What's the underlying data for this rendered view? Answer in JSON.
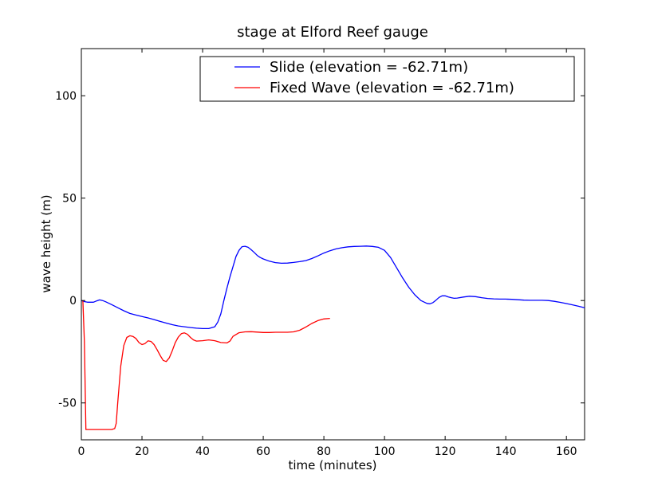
{
  "chart_data": {
    "type": "line",
    "title": "stage at Elford Reef gauge",
    "xlabel": "time (minutes)",
    "ylabel": "wave height (m)",
    "xlim": [
      0,
      166
    ],
    "ylim": [
      -68,
      123
    ],
    "xticks": [
      0,
      20,
      40,
      60,
      80,
      100,
      120,
      140,
      160
    ],
    "yticks": [
      -50,
      0,
      50,
      100
    ],
    "grid": false,
    "legend_position": "top-right",
    "series": [
      {
        "name": "Slide (elevation = -62.71m)",
        "color": "#0000ff",
        "x": [
          0,
          1,
          2,
          3,
          4,
          5,
          6,
          7,
          8,
          10,
          12,
          14,
          16,
          18,
          20,
          22,
          24,
          26,
          28,
          30,
          32,
          34,
          36,
          38,
          40,
          42,
          44,
          45,
          46,
          47,
          48,
          49,
          50,
          51,
          52,
          53,
          54,
          55,
          56,
          57,
          58,
          59,
          60,
          62,
          64,
          66,
          68,
          70,
          72,
          74,
          76,
          78,
          80,
          82,
          84,
          86,
          88,
          90,
          92,
          94,
          96,
          98,
          100,
          102,
          104,
          106,
          108,
          110,
          112,
          114,
          115,
          116,
          117,
          118,
          119,
          120,
          121,
          122,
          123,
          124,
          126,
          128,
          130,
          132,
          134,
          136,
          138,
          140,
          142,
          144,
          146,
          148,
          150,
          152,
          154,
          156,
          158,
          160,
          162,
          164,
          166
        ],
        "y": [
          0,
          -0.5,
          -0.8,
          -0.8,
          -0.8,
          -0.2,
          0.3,
          0.0,
          -0.6,
          -2.0,
          -3.5,
          -5.0,
          -6.3,
          -7.1,
          -7.8,
          -8.5,
          -9.3,
          -10.2,
          -11.0,
          -11.8,
          -12.4,
          -12.8,
          -13.2,
          -13.5,
          -13.7,
          -13.7,
          -12.8,
          -10.5,
          -6.5,
          0.0,
          6.0,
          11.5,
          16.5,
          21.5,
          24.5,
          26.3,
          26.5,
          26.0,
          24.8,
          23.5,
          22.0,
          21.0,
          20.3,
          19.2,
          18.5,
          18.2,
          18.3,
          18.6,
          19.0,
          19.5,
          20.5,
          21.8,
          23.2,
          24.3,
          25.2,
          25.8,
          26.2,
          26.4,
          26.5,
          26.6,
          26.4,
          26.0,
          24.5,
          21.0,
          16.0,
          11.0,
          6.5,
          2.8,
          0.0,
          -1.4,
          -1.6,
          -1.0,
          0.2,
          1.5,
          2.3,
          2.3,
          1.8,
          1.4,
          1.1,
          1.2,
          1.7,
          2.1,
          1.9,
          1.4,
          1.0,
          0.8,
          0.7,
          0.7,
          0.6,
          0.4,
          0.2,
          0.1,
          0.1,
          0.1,
          0.0,
          -0.4,
          -0.9,
          -1.5,
          -2.1,
          -2.8,
          -3.5
        ]
      },
      {
        "name": "Fixed Wave (elevation = -62.71m)",
        "color": "#ff0000",
        "x": [
          0.5,
          1.0,
          1.5,
          5,
          8,
          10,
          11,
          11.5,
          12,
          13,
          14,
          15,
          16,
          17,
          18,
          19,
          20,
          21,
          22,
          23,
          24,
          25,
          26,
          27,
          28,
          29,
          30,
          31,
          32,
          33,
          34,
          35,
          36,
          37,
          38,
          40,
          42,
          44,
          46,
          48,
          49,
          50,
          52,
          54,
          56,
          58,
          60,
          62,
          64,
          66,
          68,
          70,
          72,
          74,
          76,
          78,
          80,
          82
        ],
        "y": [
          0,
          -20,
          -63,
          -63,
          -63,
          -63,
          -62.5,
          -60,
          -50,
          -32,
          -22,
          -18,
          -17.2,
          -17.5,
          -18.5,
          -20.5,
          -21.5,
          -21,
          -19.7,
          -20,
          -21.5,
          -24,
          -26.8,
          -29.2,
          -29.8,
          -28,
          -24.5,
          -20.5,
          -17.8,
          -16.2,
          -15.8,
          -16.5,
          -18,
          -19.2,
          -19.8,
          -19.6,
          -19.2,
          -19.6,
          -20.5,
          -20.7,
          -19.8,
          -17.5,
          -15.7,
          -15.3,
          -15.2,
          -15.4,
          -15.6,
          -15.6,
          -15.5,
          -15.5,
          -15.5,
          -15.3,
          -14.5,
          -13,
          -11.2,
          -9.8,
          -9,
          -8.7
        ]
      }
    ]
  }
}
